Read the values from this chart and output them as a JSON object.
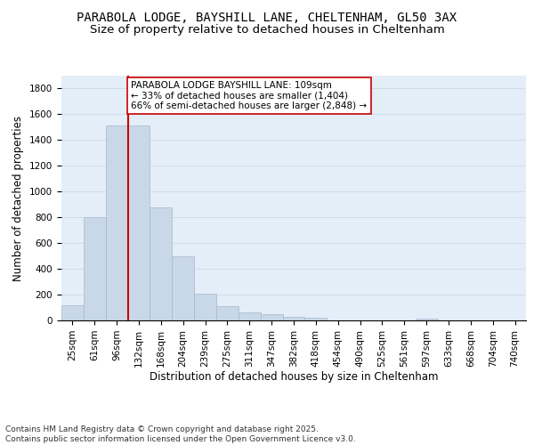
{
  "title_line1": "PARABOLA LODGE, BAYSHILL LANE, CHELTENHAM, GL50 3AX",
  "title_line2": "Size of property relative to detached houses in Cheltenham",
  "xlabel": "Distribution of detached houses by size in Cheltenham",
  "ylabel": "Number of detached properties",
  "categories": [
    "25sqm",
    "61sqm",
    "96sqm",
    "132sqm",
    "168sqm",
    "204sqm",
    "239sqm",
    "275sqm",
    "311sqm",
    "347sqm",
    "382sqm",
    "418sqm",
    "454sqm",
    "490sqm",
    "525sqm",
    "561sqm",
    "597sqm",
    "633sqm",
    "668sqm",
    "704sqm",
    "740sqm"
  ],
  "values": [
    120,
    800,
    1510,
    1510,
    880,
    500,
    210,
    110,
    65,
    45,
    30,
    22,
    0,
    0,
    0,
    0,
    15,
    0,
    0,
    0,
    0
  ],
  "bar_color": "#c8d8e8",
  "bar_edge_color": "#a8b8cc",
  "grid_color": "#d0dce8",
  "bg_color": "#e4eef8",
  "vline_color": "#cc0000",
  "vline_pos": 2.5,
  "annotation_text": "PARABOLA LODGE BAYSHILL LANE: 109sqm\n← 33% of detached houses are smaller (1,404)\n66% of semi-detached houses are larger (2,848) →",
  "annotation_box_color": "#ffffff",
  "annotation_box_edge": "#cc0000",
  "ylim": [
    0,
    1900
  ],
  "yticks": [
    0,
    200,
    400,
    600,
    800,
    1000,
    1200,
    1400,
    1600,
    1800
  ],
  "footer_text": "Contains HM Land Registry data © Crown copyright and database right 2025.\nContains public sector information licensed under the Open Government Licence v3.0.",
  "title_fontsize": 10,
  "subtitle_fontsize": 9.5,
  "axis_label_fontsize": 8.5,
  "tick_fontsize": 7.5,
  "annotation_fontsize": 7.5,
  "footer_fontsize": 6.5
}
